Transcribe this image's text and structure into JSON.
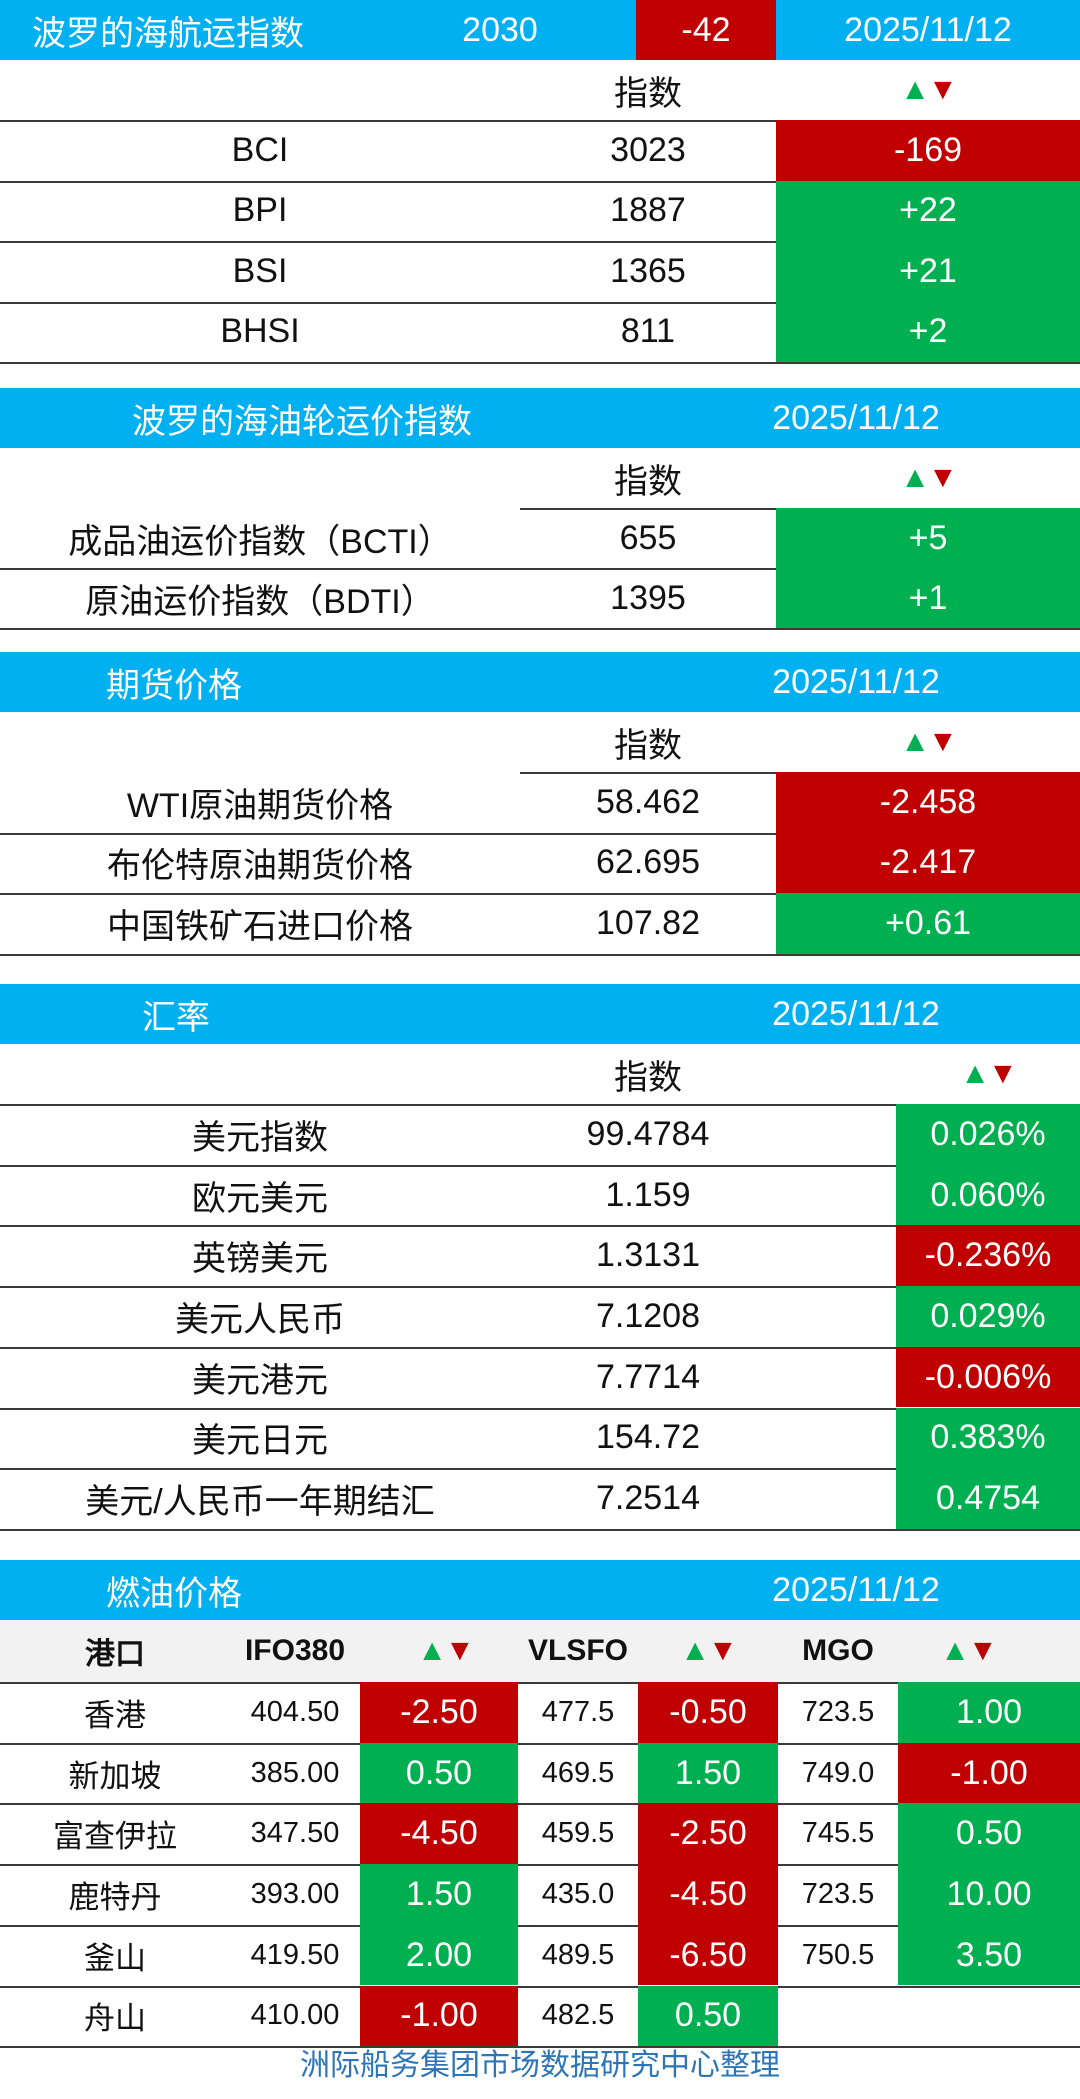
{
  "baltic": {
    "title": "波罗的海航运指数",
    "value": "2030",
    "change": "-42",
    "date": "2025/11/12",
    "col_header": "指数",
    "rows": [
      {
        "name": "BCI",
        "value": "3023",
        "change": "-169",
        "dir": "down"
      },
      {
        "name": "BPI",
        "value": "1887",
        "change": "+22",
        "dir": "up"
      },
      {
        "name": "BSI",
        "value": "1365",
        "change": "+21",
        "dir": "up"
      },
      {
        "name": "BHSI",
        "value": "811",
        "change": "+2",
        "dir": "up"
      }
    ]
  },
  "tanker": {
    "title": "波罗的海油轮运价指数",
    "date": "2025/11/12",
    "col_header": "指数",
    "rows": [
      {
        "name": "成品油运价指数（BCTI）",
        "value": "655",
        "change": "+5",
        "dir": "up"
      },
      {
        "name": "原油运价指数（BDTI）",
        "value": "1395",
        "change": "+1",
        "dir": "up"
      }
    ]
  },
  "futures": {
    "title": "期货价格",
    "date": "2025/11/12",
    "col_header": "指数",
    "rows": [
      {
        "name": "WTI原油期货价格",
        "value": "58.462",
        "change": "-2.458",
        "dir": "down"
      },
      {
        "name": "布伦特原油期货价格",
        "value": "62.695",
        "change": "-2.417",
        "dir": "down"
      },
      {
        "name": "中国铁矿石进口价格",
        "value": "107.82",
        "change": "+0.61",
        "dir": "up"
      }
    ]
  },
  "fx": {
    "title": "汇率",
    "date": "2025/11/12",
    "col_header": "指数",
    "rows": [
      {
        "name": "美元指数",
        "value": "99.4784",
        "change": "0.026%",
        "dir": "up"
      },
      {
        "name": "欧元美元",
        "value": "1.159",
        "change": "0.060%",
        "dir": "up"
      },
      {
        "name": "英镑美元",
        "value": "1.3131",
        "change": "-0.236%",
        "dir": "down"
      },
      {
        "name": "美元人民币",
        "value": "7.1208",
        "change": "0.029%",
        "dir": "up"
      },
      {
        "name": "美元港元",
        "value": "7.7714",
        "change": "-0.006%",
        "dir": "down"
      },
      {
        "name": "美元日元",
        "value": "154.72",
        "change": "0.383%",
        "dir": "up"
      },
      {
        "name": "美元/人民币一年期结汇",
        "value": "7.2514",
        "change": "0.4754",
        "dir": "up"
      }
    ]
  },
  "fuel": {
    "title": "燃油价格",
    "date": "2025/11/12",
    "headers": {
      "port": "港口",
      "ifo": "IFO380",
      "vlsfo": "VLSFO",
      "mgo": "MGO"
    },
    "rows": [
      {
        "port": "香港",
        "ifo": "404.50",
        "ifo_chg": "-2.50",
        "ifo_dir": "down",
        "vlsfo": "477.5",
        "vlsfo_chg": "-0.50",
        "vlsfo_dir": "down",
        "mgo": "723.5",
        "mgo_chg": "1.00",
        "mgo_dir": "up"
      },
      {
        "port": "新加坡",
        "ifo": "385.00",
        "ifo_chg": "0.50",
        "ifo_dir": "up",
        "vlsfo": "469.5",
        "vlsfo_chg": "1.50",
        "vlsfo_dir": "up",
        "mgo": "749.0",
        "mgo_chg": "-1.00",
        "mgo_dir": "down"
      },
      {
        "port": "富查伊拉",
        "ifo": "347.50",
        "ifo_chg": "-4.50",
        "ifo_dir": "down",
        "vlsfo": "459.5",
        "vlsfo_chg": "-2.50",
        "vlsfo_dir": "down",
        "mgo": "745.5",
        "mgo_chg": "0.50",
        "mgo_dir": "up"
      },
      {
        "port": "鹿特丹",
        "ifo": "393.00",
        "ifo_chg": "1.50",
        "ifo_dir": "up",
        "vlsfo": "435.0",
        "vlsfo_chg": "-4.50",
        "vlsfo_dir": "down",
        "mgo": "723.5",
        "mgo_chg": "10.00",
        "mgo_dir": "up"
      },
      {
        "port": "釜山",
        "ifo": "419.50",
        "ifo_chg": "2.00",
        "ifo_dir": "up",
        "vlsfo": "489.5",
        "vlsfo_chg": "-6.50",
        "vlsfo_dir": "down",
        "mgo": "750.5",
        "mgo_chg": "3.50",
        "mgo_dir": "up"
      },
      {
        "port": "舟山",
        "ifo": "410.00",
        "ifo_chg": "-1.00",
        "ifo_dir": "down",
        "vlsfo": "482.5",
        "vlsfo_chg": "0.50",
        "vlsfo_dir": "up",
        "mgo": "",
        "mgo_chg": "",
        "mgo_dir": ""
      }
    ]
  },
  "footer": "洲际船务集团市场数据研究中心整理",
  "colors": {
    "header_bg": "#00b0f0",
    "up": "#00b050",
    "down": "#c00000",
    "footer_text": "#2e75b6"
  },
  "icons": {
    "trend": "up-down-triangles-icon"
  }
}
